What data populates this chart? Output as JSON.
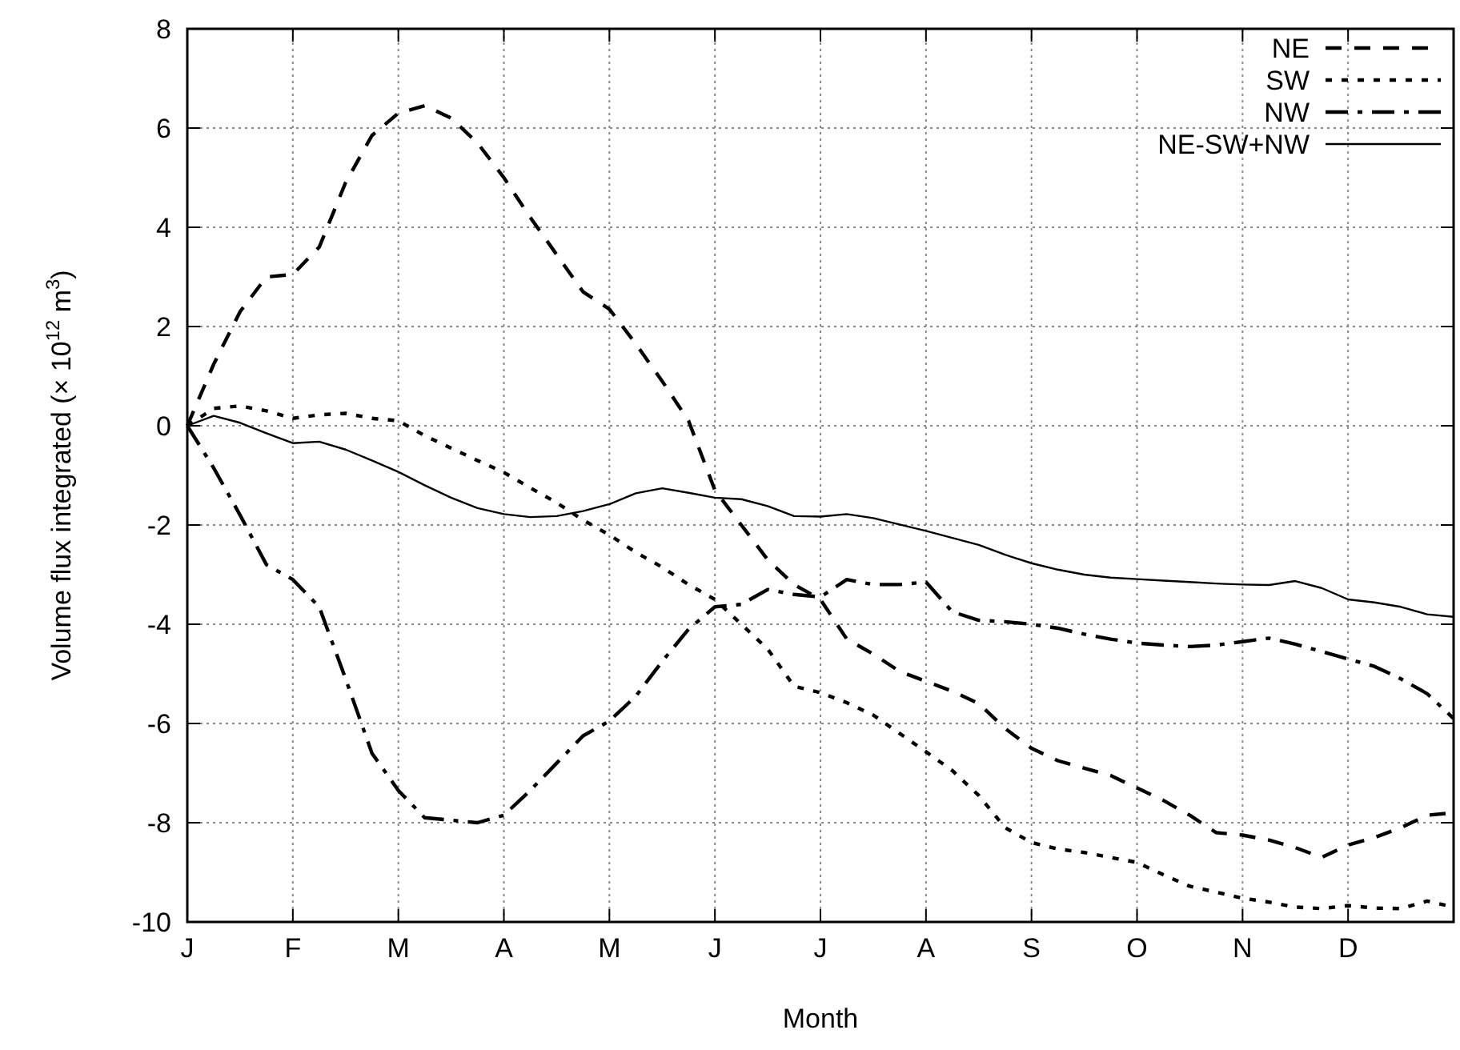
{
  "chart_data": {
    "type": "line",
    "xlabel": "Month",
    "ylabel": "Volume flux integrated (× 10$^{12}$ m$^{3}$)",
    "categories": [
      "J",
      null,
      null,
      null,
      "F",
      null,
      null,
      null,
      "M",
      null,
      null,
      null,
      "A",
      null,
      null,
      null,
      "M",
      null,
      null,
      null,
      "J",
      null,
      null,
      null,
      "J",
      null,
      null,
      null,
      "A",
      null,
      null,
      null,
      "S",
      null,
      null,
      null,
      "O",
      null,
      null,
      null,
      "N",
      null,
      null,
      null,
      "D",
      null,
      null,
      null,
      null
    ],
    "ylim": [
      -10,
      8
    ],
    "yticks": [
      -10,
      -8,
      -6,
      -4,
      -2,
      0,
      2,
      4,
      6,
      8
    ],
    "grid": true,
    "legend": "top right",
    "marker": "none",
    "series": [
      {
        "name": "NE",
        "color": "#000000",
        "line_style": "dashed",
        "values": [
          0,
          1.24,
          2.3,
          3.0,
          3.05,
          3.6,
          4.9,
          5.85,
          6.3,
          6.45,
          6.2,
          5.7,
          5.0,
          4.2,
          3.45,
          2.7,
          2.35,
          1.65,
          0.9,
          0.1,
          -1.3,
          -2.0,
          -2.7,
          -3.2,
          -3.5,
          -4.3,
          -4.6,
          -4.95,
          -5.15,
          -5.35,
          -5.6,
          -6.1,
          -6.5,
          -6.75,
          -6.9,
          -7.05,
          -7.3,
          -7.55,
          -7.85,
          -8.2,
          -8.25,
          -8.35,
          -8.5,
          -8.7,
          -8.45,
          -8.3,
          -8.1,
          -7.85,
          -7.8
        ]
      },
      {
        "name": "SW",
        "color": "#000000",
        "line_style": "dotted",
        "values": [
          0,
          0.35,
          0.4,
          0.3,
          0.15,
          0.22,
          0.25,
          0.15,
          0.1,
          -0.2,
          -0.45,
          -0.7,
          -0.94,
          -1.25,
          -1.55,
          -1.9,
          -2.2,
          -2.55,
          -2.85,
          -3.2,
          -3.5,
          -4.0,
          -4.5,
          -5.25,
          -5.38,
          -5.58,
          -5.83,
          -6.2,
          -6.57,
          -6.95,
          -7.45,
          -8.1,
          -8.4,
          -8.53,
          -8.6,
          -8.7,
          -8.8,
          -9.05,
          -9.28,
          -9.4,
          -9.52,
          -9.6,
          -9.7,
          -9.73,
          -9.67,
          -9.72,
          -9.73,
          -9.58,
          -9.7
        ]
      },
      {
        "name": "NW",
        "color": "#000000",
        "line_style": "dashdot",
        "values": [
          0,
          -0.85,
          -1.8,
          -2.8,
          -3.1,
          -3.65,
          -5.1,
          -6.6,
          -7.35,
          -7.9,
          -7.95,
          -8.0,
          -7.85,
          -7.35,
          -6.8,
          -6.25,
          -5.95,
          -5.45,
          -4.75,
          -4.1,
          -3.65,
          -3.6,
          -3.3,
          -3.4,
          -3.45,
          -3.1,
          -3.2,
          -3.2,
          -3.15,
          -3.75,
          -3.92,
          -3.95,
          -4.0,
          -4.08,
          -4.2,
          -4.3,
          -4.38,
          -4.42,
          -4.45,
          -4.42,
          -4.35,
          -4.28,
          -4.4,
          -4.55,
          -4.7,
          -4.85,
          -5.1,
          -5.4,
          -5.9
        ]
      },
      {
        "name": "NE-SW+NW",
        "color": "#000000",
        "line_style": "solid",
        "values": [
          0,
          0.2,
          0.06,
          -0.15,
          -0.35,
          -0.32,
          -0.48,
          -0.7,
          -0.93,
          -1.2,
          -1.45,
          -1.66,
          -1.78,
          -1.84,
          -1.82,
          -1.72,
          -1.58,
          -1.36,
          -1.26,
          -1.35,
          -1.45,
          -1.48,
          -1.62,
          -1.82,
          -1.83,
          -1.78,
          -1.86,
          -1.99,
          -2.12,
          -2.26,
          -2.4,
          -2.6,
          -2.77,
          -2.9,
          -3.0,
          -3.06,
          -3.09,
          -3.12,
          -3.15,
          -3.18,
          -3.2,
          -3.21,
          -3.13,
          -3.27,
          -3.5,
          -3.56,
          -3.65,
          -3.8,
          -3.85
        ]
      }
    ]
  }
}
